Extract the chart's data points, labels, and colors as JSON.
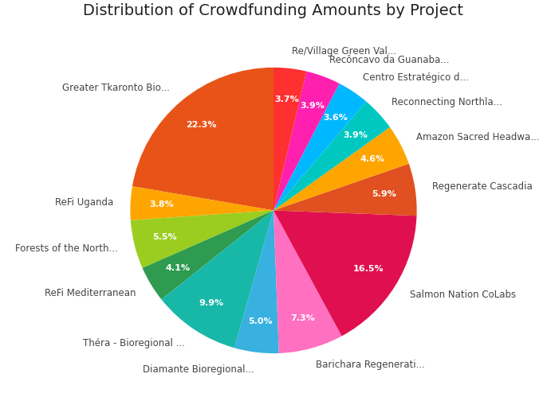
{
  "title": "Distribution of Crowdfunding Amounts by Project",
  "title_fontsize": 14,
  "labels": [
    "Greater Tkaronto Bio...",
    "ReFi Uganda",
    "Forests of the North...",
    "ReFi Mediterranean",
    "Théra - Bioregional ...",
    "Diamante Bioregional...",
    "Barichara Regenerati...",
    "Salmon Nation CoLabs",
    "Regenerate Cascadia",
    "Amazon Sacred Headwa...",
    "Reconnecting Northla...",
    "Centro Estratégico d...",
    "Recôncavo da Guanaba...",
    "Re/Village Green Val..."
  ],
  "values": [
    22.3,
    3.8,
    5.5,
    4.1,
    9.9,
    5.0,
    7.3,
    16.5,
    5.9,
    4.6,
    3.9,
    3.6,
    3.9,
    3.7
  ],
  "colors": [
    "#E85418",
    "#FFA500",
    "#9ACD20",
    "#2E9B50",
    "#18B8A8",
    "#38B0E0",
    "#FF70C0",
    "#E01050",
    "#E05020",
    "#FFA500",
    "#00C8C0",
    "#00B8FF",
    "#FF20B0",
    "#FF3030"
  ],
  "label_fontsize": 8.5,
  "pct_fontsize": 8,
  "startangle": 90,
  "pctdistance": 0.78,
  "labeldistance": 1.12
}
